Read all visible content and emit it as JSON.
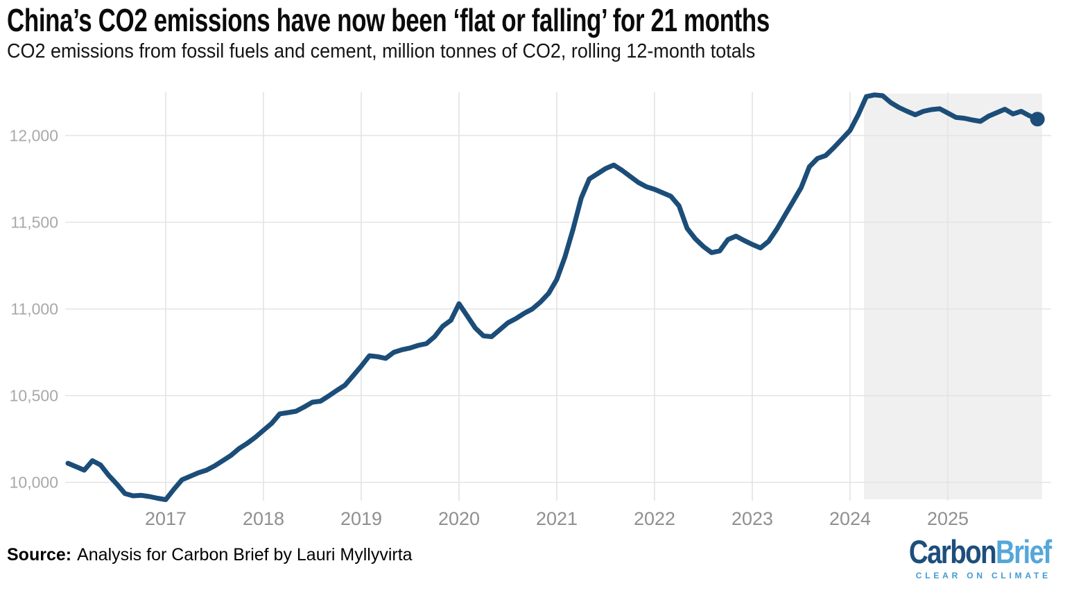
{
  "source": {
    "label": "Source:",
    "text": "Analysis for Carbon Brief by Lauri Myllyvirta"
  },
  "logo": {
    "word_primary": "Carbon",
    "word_secondary": "Brief",
    "tagline": "CLEAR ON CLIMATE",
    "primary_color": "#1d4e7c",
    "secondary_color": "#55a7d8",
    "tagline_color": "#3f9ad2"
  },
  "chart_data": {
    "type": "line",
    "title": "China’s CO2 emissions have now been ‘flat or falling’ for 21 months",
    "subtitle": "CO2 emissions from fossil fuels and cement, million tonnes of CO2, rolling 12-month totals",
    "xlabel": "",
    "ylabel": "",
    "x_unit": "month",
    "x_start": "2016-01",
    "x_end": "2025-12",
    "x_tick_labels": [
      "2017",
      "2018",
      "2019",
      "2020",
      "2021",
      "2022",
      "2023",
      "2024",
      "2025"
    ],
    "y_ticks": [
      10000,
      10500,
      11000,
      11500,
      12000
    ],
    "y_tick_labels": [
      "10,000",
      "10,500",
      "11,000",
      "11,500",
      "12,000"
    ],
    "ylim": [
      9870,
      12250
    ],
    "grid": true,
    "legend": false,
    "line_color": "#1b4d78",
    "grid_color": "#e3e3e3",
    "y_tick_color": "#a8a8a8",
    "x_tick_color": "#8f8f8f",
    "highlight": {
      "label": "flat or falling period (21 months)",
      "start": "2024-03",
      "end": "2025-12",
      "color": "#f0f0f0"
    },
    "last_point": {
      "x": "2025-12",
      "value": 12095
    },
    "series": [
      {
        "name": "China CO2 emissions, rolling 12-month total (million tonnes)",
        "values": [
          10110,
          10090,
          10070,
          10125,
          10100,
          10040,
          9990,
          9935,
          9922,
          9925,
          9918,
          9908,
          9900,
          9960,
          10015,
          10035,
          10055,
          10070,
          10095,
          10125,
          10155,
          10195,
          10225,
          10260,
          10300,
          10340,
          10395,
          10402,
          10410,
          10435,
          10462,
          10468,
          10498,
          10530,
          10560,
          10615,
          10670,
          10730,
          10725,
          10715,
          10750,
          10765,
          10775,
          10790,
          10800,
          10840,
          10900,
          10935,
          11030,
          10960,
          10890,
          10845,
          10840,
          10880,
          10920,
          10945,
          10975,
          11000,
          11040,
          11090,
          11170,
          11300,
          11460,
          11640,
          11750,
          11780,
          11810,
          11830,
          11800,
          11765,
          11730,
          11705,
          11690,
          11670,
          11650,
          11595,
          11465,
          11405,
          11360,
          11325,
          11335,
          11400,
          11420,
          11395,
          11372,
          11352,
          11390,
          11460,
          11540,
          11620,
          11700,
          11820,
          11868,
          11885,
          11930,
          11980,
          12030,
          12120,
          12225,
          12235,
          12230,
          12190,
          12162,
          12140,
          12120,
          12140,
          12150,
          12155,
          12130,
          12105,
          12100,
          12090,
          12082,
          12112,
          12132,
          12152,
          12125,
          12140,
          12115,
          12095
        ]
      }
    ]
  }
}
